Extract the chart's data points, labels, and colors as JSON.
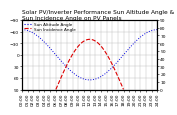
{
  "title": "Solar PV/Inverter Performance Sun Altitude Angle & Sun Incidence Angle on PV Panels",
  "legend_entries": [
    "Sun Altitude Angle",
    "Sun Incidence Angle"
  ],
  "line_colors": [
    "#0000dd",
    "#dd0000"
  ],
  "x_min": 0,
  "x_max": 24,
  "y_left_min": -90,
  "y_left_max": 90,
  "y_right_min": 0,
  "y_right_max": 90,
  "background_color": "#ffffff",
  "grid_color": "#bbbbbb",
  "title_fontsize": 4.2,
  "tick_fontsize": 3.2,
  "legend_fontsize": 3.0,
  "x_tick_step": 1,
  "left_yticks": [
    -90,
    -60,
    -30,
    0,
    30,
    60,
    90
  ],
  "right_yticks": [
    0,
    10,
    20,
    30,
    40,
    50,
    60,
    70,
    80,
    90
  ]
}
